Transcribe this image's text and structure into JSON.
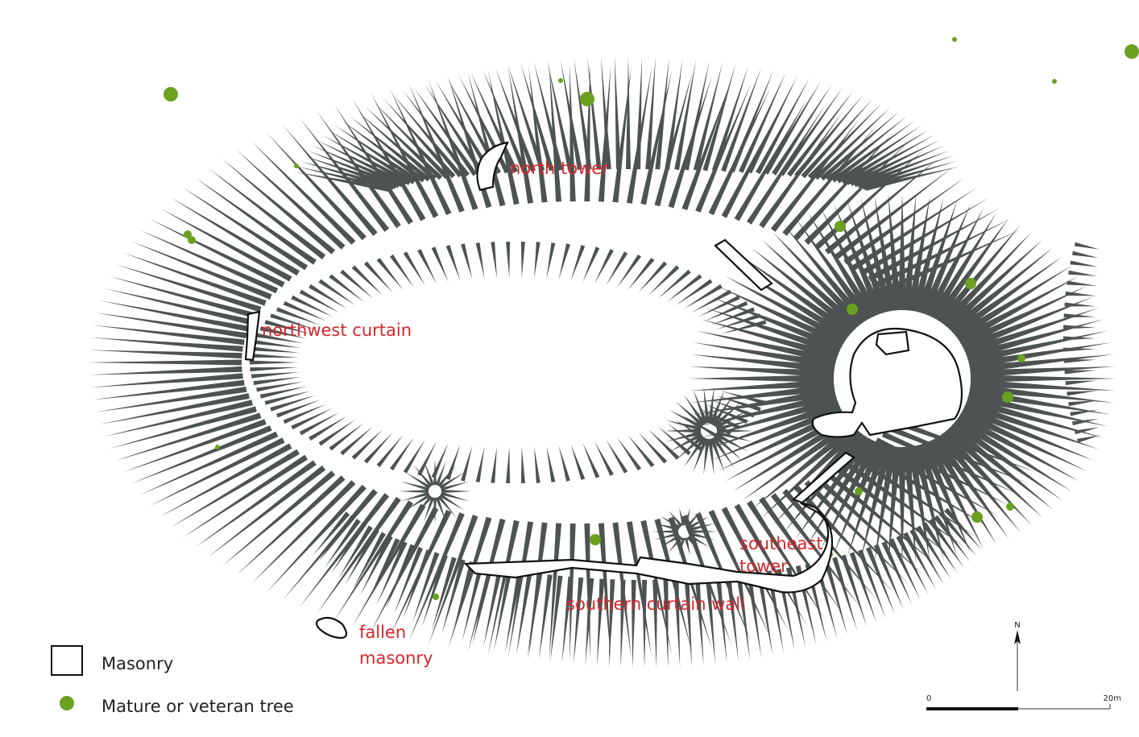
{
  "labels": [
    {
      "lines": [
        "north tower"
      ]
    },
    {
      "lines": [
        "northwest curtain"
      ]
    },
    {
      "lines": [
        "southeast",
        "tower"
      ]
    },
    {
      "lines": [
        "southern curtain wall"
      ]
    },
    {
      "lines": [
        "fallen",
        "masonry"
      ]
    }
  ],
  "legend": [
    {
      "label": "Masonry"
    },
    {
      "label": "Mature or veteran tree"
    }
  ],
  "scale": {
    "north": "N",
    "start": "0",
    "end": "20m"
  }
}
